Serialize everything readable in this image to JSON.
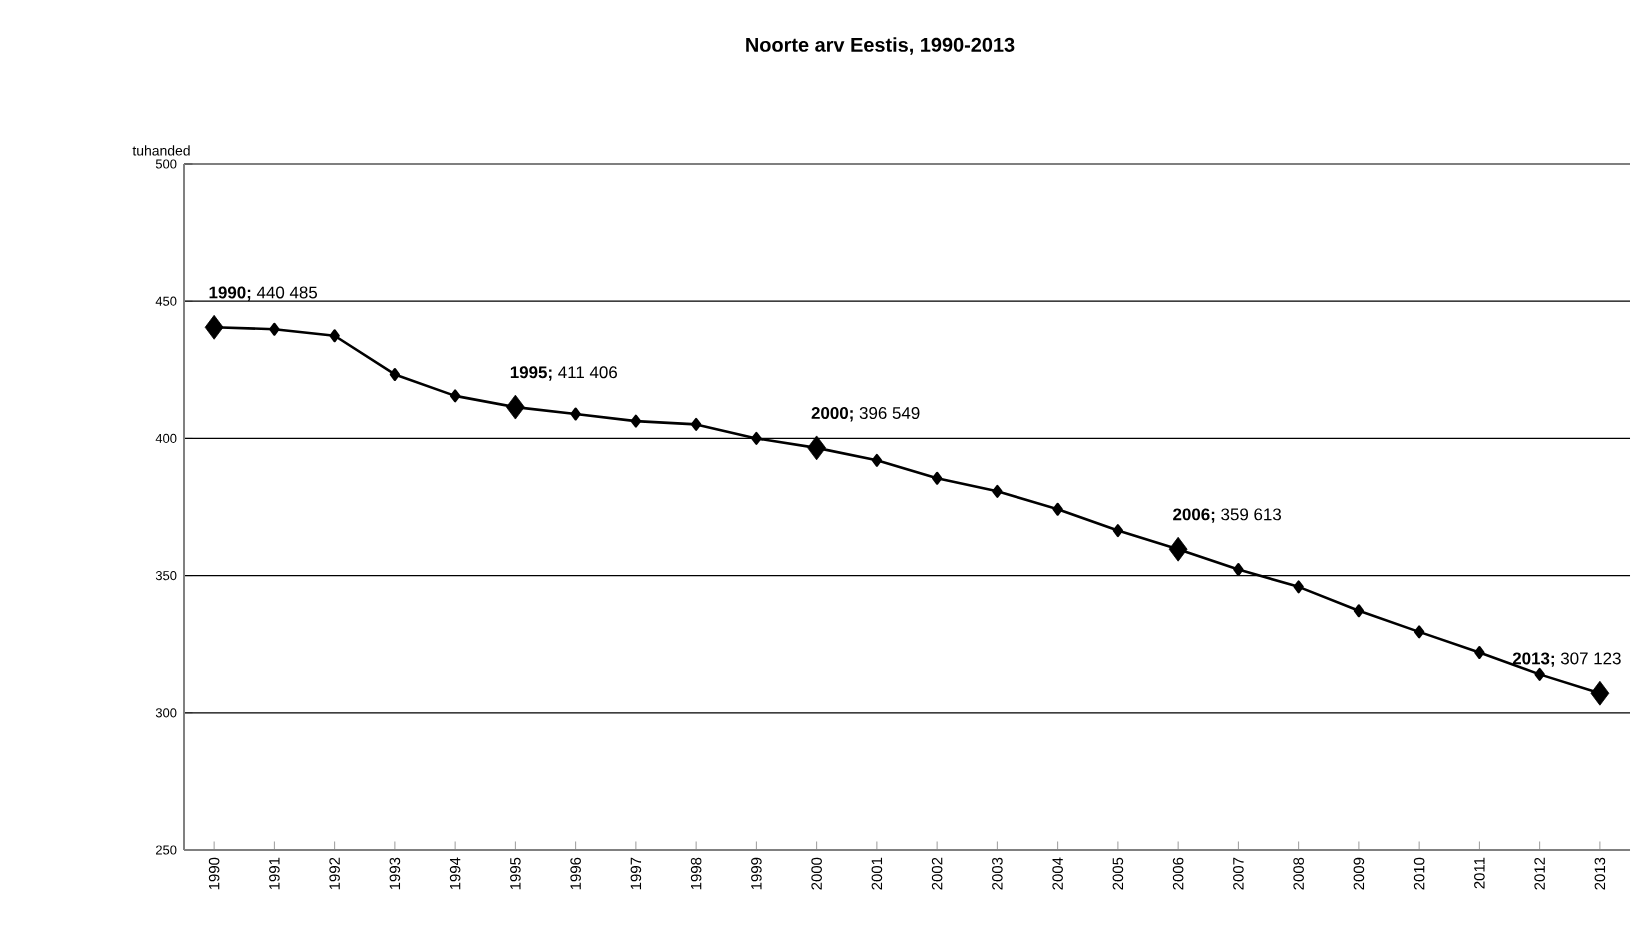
{
  "chart_data": {
    "type": "line",
    "title": "Noorte arv Eestis, 1990-2013",
    "ylabel": "tuhanded",
    "x": [
      1990,
      1991,
      1992,
      1993,
      1994,
      1995,
      1996,
      1997,
      1998,
      1999,
      2000,
      2001,
      2002,
      2003,
      2004,
      2005,
      2006,
      2007,
      2008,
      2009,
      2010,
      2011,
      2012,
      2013
    ],
    "series": [
      {
        "color": "#000000",
        "values": [
          440.485,
          439.8,
          437.4,
          423.3,
          415.5,
          411.406,
          408.9,
          406.3,
          405.1,
          400.0,
          396.549,
          392.0,
          385.5,
          380.7,
          374.2,
          366.4,
          359.613,
          352.2,
          345.9,
          337.2,
          329.5,
          322.0,
          314.0,
          307.123
        ]
      }
    ],
    "xlim": [
      1989.5,
      2013.5
    ],
    "xticks": [
      1990,
      1991,
      1992,
      1993,
      1994,
      1995,
      1996,
      1997,
      1998,
      1999,
      2000,
      2001,
      2002,
      2003,
      2004,
      2005,
      2006,
      2007,
      2008,
      2009,
      2010,
      2011,
      2012,
      2013
    ],
    "ylim": [
      250,
      500
    ],
    "yticks": [
      250,
      300,
      350,
      400,
      450,
      500
    ],
    "grid": "y",
    "marker": "diamond",
    "line_style": "solid",
    "annotations": [
      {
        "text": "**1990;** 440 485",
        "x": 1990,
        "y": 440.485
      },
      {
        "text": "**1995;** 411 406",
        "x": 1995,
        "y": 411.406
      },
      {
        "text": "**2000;** 396 549",
        "x": 2000,
        "y": 396.549
      },
      {
        "text": "**2006;** 359 613",
        "x": 2006,
        "y": 359.613
      },
      {
        "text": "**2013;** 307 123",
        "x": 2013,
        "y": 307.123
      }
    ]
  }
}
